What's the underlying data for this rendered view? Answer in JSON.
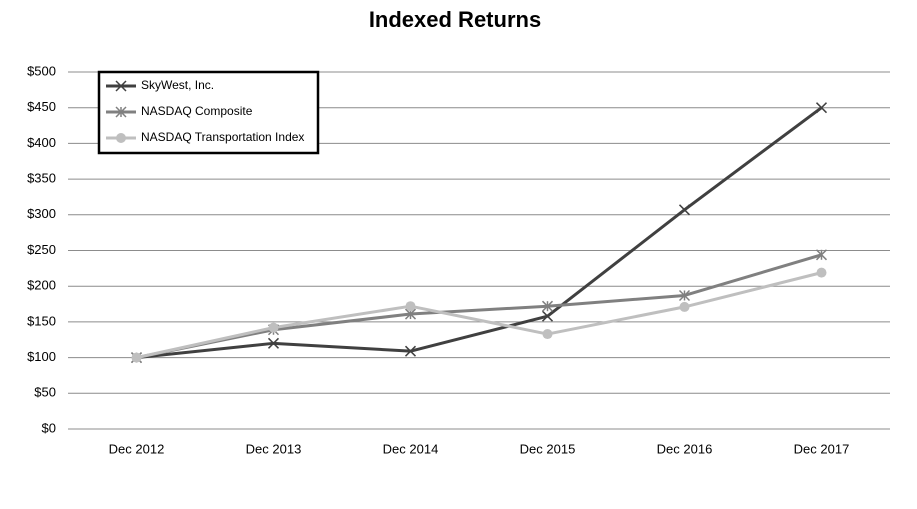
{
  "chart_data": {
    "type": "line",
    "title": "Indexed Returns",
    "categories": [
      "Dec 2012",
      "Dec 2013",
      "Dec 2014",
      "Dec 2015",
      "Dec 2016",
      "Dec 2017"
    ],
    "series": [
      {
        "name": "SkyWest, Inc.",
        "color": "#404040",
        "marker": "x",
        "values": [
          100,
          120,
          109,
          158,
          307,
          450
        ]
      },
      {
        "name": "NASDAQ Composite",
        "color": "#808080",
        "marker": "asterisk",
        "values": [
          100,
          139,
          161,
          172,
          187,
          244
        ]
      },
      {
        "name": "NASDAQ Transportation Index",
        "color": "#bfbfbf",
        "marker": "circle",
        "values": [
          100,
          142,
          172,
          133,
          171,
          219
        ]
      }
    ],
    "ylim": [
      0,
      500
    ],
    "yticks": [
      {
        "value": 0,
        "label": "$0"
      },
      {
        "value": 50,
        "label": "$50"
      },
      {
        "value": 100,
        "label": "$100"
      },
      {
        "value": 150,
        "label": "$150"
      },
      {
        "value": 200,
        "label": "$200"
      },
      {
        "value": 250,
        "label": "$250"
      },
      {
        "value": 300,
        "label": "$300"
      },
      {
        "value": 350,
        "label": "$350"
      },
      {
        "value": 400,
        "label": "$400"
      },
      {
        "value": 450,
        "label": "$450"
      },
      {
        "value": 500,
        "label": "$500"
      }
    ],
    "grid": true,
    "legend": "upper left"
  }
}
